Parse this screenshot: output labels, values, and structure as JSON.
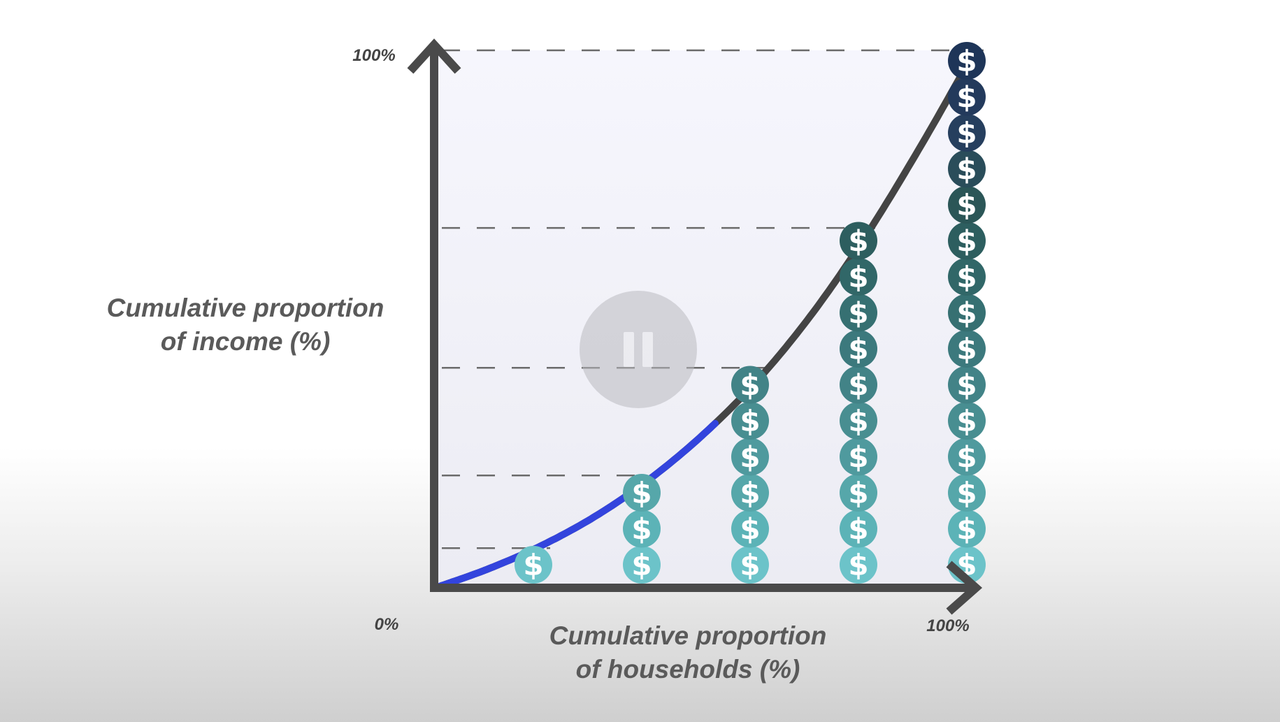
{
  "chart_data": {
    "type": "line",
    "title": "",
    "xlabel": [
      "Cumulative proportion",
      "of households (%)"
    ],
    "ylabel": [
      "Cumulative proportion",
      "of income (%)"
    ],
    "x_ticks": [
      {
        "value": 0,
        "label": "0%"
      },
      {
        "value": 100,
        "label": "100%"
      }
    ],
    "y_ticks": [
      {
        "value": 100,
        "label": "100%"
      }
    ],
    "xlim": [
      0,
      100
    ],
    "ylim": [
      0,
      100
    ],
    "series": [
      {
        "x": [
          0,
          10,
          20,
          30,
          40,
          50,
          60,
          70,
          80,
          90,
          100
        ],
        "y": [
          0,
          3.6,
          8.0,
          13.5,
          20.4,
          28.8,
          38.9,
          51.2,
          65.8,
          82.3,
          100
        ],
        "color": "#444444",
        "highlight_range": [
          0,
          52
        ],
        "highlight_color": "#3344dd"
      }
    ],
    "reference_lines": [
      {
        "y": 100,
        "x_to": 100
      },
      {
        "y": 67,
        "x_to": 80
      },
      {
        "y": 41,
        "x_to": 60
      },
      {
        "y": 21,
        "x_to": 40
      },
      {
        "y": 7.5,
        "x_to": 20
      }
    ],
    "stacks": [
      {
        "x": 20,
        "coins": 1
      },
      {
        "x": 40,
        "coins": 3
      },
      {
        "x": 60,
        "coins": 6
      },
      {
        "x": 80,
        "coins": 10
      },
      {
        "x": 100,
        "coins": 15
      }
    ],
    "coin_symbol": "$",
    "coin_colors": [
      "#6cc3c9",
      "#5cb3b7",
      "#56a7aa",
      "#4f9a9e",
      "#488e91",
      "#428387",
      "#3c797d",
      "#367072",
      "#316768",
      "#2d5e5f",
      "#2b5657",
      "#2a4d5a",
      "#263f5e",
      "#233a5c",
      "#1e3558"
    ],
    "grid": false,
    "legend": "none",
    "background_color": "#f4f5fc",
    "axis_color": "#4a4a4a"
  },
  "player": {
    "pause_icon": "pause-icon"
  }
}
